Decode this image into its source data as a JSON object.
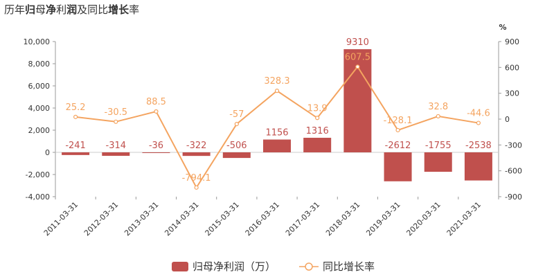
{
  "title": {
    "parts": [
      {
        "text": "历年",
        "bold": false
      },
      {
        "text": "归",
        "bold": true
      },
      {
        "text": "母",
        "bold": false
      },
      {
        "text": "净",
        "bold": true
      },
      {
        "text": "利",
        "bold": false
      },
      {
        "text": "润",
        "bold": true
      },
      {
        "text": "及同比",
        "bold": false
      },
      {
        "text": "增长",
        "bold": true
      },
      {
        "text": "率",
        "bold": false
      }
    ]
  },
  "chart_data": {
    "type": "bar",
    "categories": [
      "2011-03-31",
      "2012-03-31",
      "2013-03-31",
      "2014-03-31",
      "2015-03-31",
      "2016-03-31",
      "2017-03-31",
      "2018-03-31",
      "2019-03-31",
      "2020-03-31",
      "2021-03-31"
    ],
    "series": [
      {
        "name": "归母净利润（万）",
        "type": "bar",
        "axis": "left",
        "color": "#c0504d",
        "values": [
          -241,
          -314,
          -36,
          -322,
          -506,
          1156,
          1316,
          9310,
          -2612,
          -1755,
          -2538
        ]
      },
      {
        "name": "同比增长率",
        "type": "line",
        "axis": "right",
        "color": "#f4a460",
        "values": [
          25.2,
          -30.5,
          88.5,
          -794.1,
          -57,
          328.3,
          13.9,
          607.5,
          -128.1,
          32.8,
          -44.6
        ]
      }
    ],
    "y_left": {
      "ylim": [
        -4000,
        10000
      ],
      "ticks": [
        10000,
        8000,
        6000,
        4000,
        2000,
        0,
        -2000,
        -4000
      ],
      "tick_labels": [
        "10,000",
        "8,000",
        "6,000",
        "4,000",
        "2,000",
        "0",
        "-2,000",
        "-4,000"
      ]
    },
    "y_right": {
      "unit": "%",
      "ylim": [
        -900,
        900
      ],
      "ticks": [
        900,
        600,
        300,
        0,
        -300,
        -600,
        -900
      ]
    },
    "legend_position": "bottom-center",
    "grid": false
  }
}
